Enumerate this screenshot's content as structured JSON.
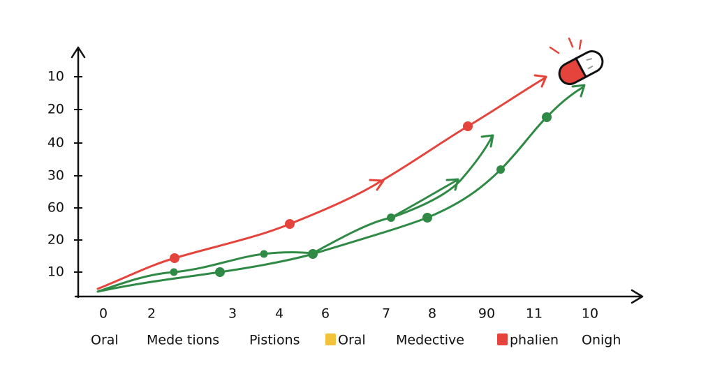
{
  "y_labels": [
    "10",
    "20",
    "40",
    "30",
    "60",
    "20",
    "10"
  ],
  "x_labels": [
    "0",
    "2",
    "3",
    "4",
    "6",
    "7",
    "8",
    "90",
    "11",
    "10"
  ],
  "legend": [
    {
      "label": "Oral"
    },
    {
      "label": "Mede tions"
    },
    {
      "label": "Pistions"
    },
    {
      "label": "Oral",
      "color": "#f2c23a"
    },
    {
      "label": "Medective"
    },
    {
      "label": "phalien",
      "color": "#e5443c"
    },
    {
      "label": "Onigh"
    }
  ]
}
